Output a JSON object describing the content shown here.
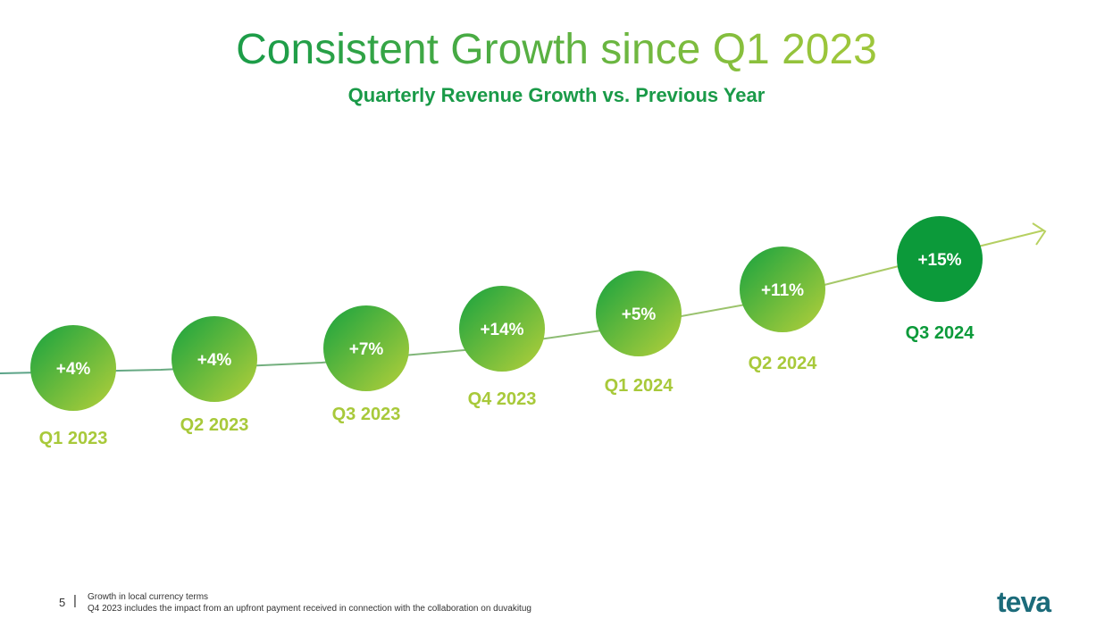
{
  "title": "Consistent Growth since Q1 2023",
  "subtitle": "Quarterly Revenue Growth vs. Previous Year",
  "page_number": "5",
  "footnotes": [
    "Growth in local currency terms",
    "Q4 2023 includes the impact from an upfront payment received in connection with the collaboration on duvakitug"
  ],
  "logo_text": "teva",
  "colors": {
    "dark_green": "#0c9a3a",
    "light_green": "#a8c93a",
    "trend_line": "#a9c97a"
  },
  "chart_data": {
    "type": "scatter",
    "title": "Quarterly Revenue Growth vs. Previous Year",
    "xlabel": "",
    "ylabel": "",
    "categories": [
      "Q1 2023",
      "Q2 2023",
      "Q3 2023",
      "Q4 2023",
      "Q1 2024",
      "Q2 2024",
      "Q3 2024"
    ],
    "values": [
      4,
      4,
      7,
      14,
      5,
      11,
      15
    ],
    "labels": [
      "+4%",
      "+4%",
      "+7%",
      "+14%",
      "+5%",
      "+11%",
      "+15%"
    ],
    "grid": false,
    "legend": "none",
    "highlight_last": true
  }
}
